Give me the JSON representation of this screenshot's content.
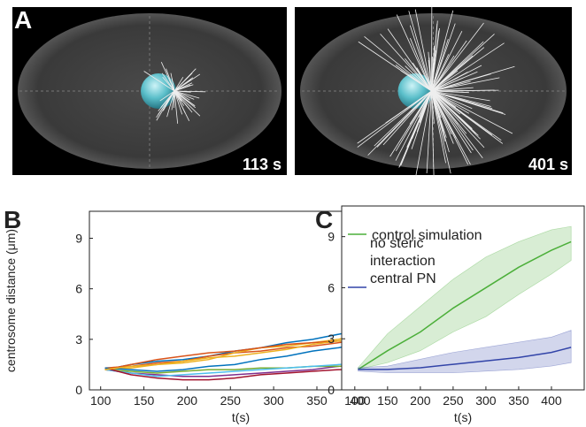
{
  "images": {
    "label": "A",
    "left_time": "113 s",
    "right_time": "401 s"
  },
  "chart_data": [
    {
      "type": "line",
      "panel_label": "B",
      "y_label": "centrosome distance (μm)",
      "x_label": "t(s)",
      "xlim": [
        87,
        437
      ],
      "ylim": [
        0,
        10.6
      ],
      "xticks": [
        100,
        150,
        200,
        250,
        300,
        350,
        400
      ],
      "yticks": [
        0,
        3,
        6,
        9
      ],
      "x": [
        105,
        135,
        165,
        195,
        225,
        255,
        285,
        315,
        345,
        375,
        405,
        435
      ],
      "series": [
        {
          "color": "#0072bd",
          "values": [
            1.2,
            1.5,
            1.7,
            1.8,
            2.0,
            2.3,
            2.5,
            2.8,
            3.0,
            3.3,
            3.6,
            3.9
          ]
        },
        {
          "color": "#d95319",
          "values": [
            1.3,
            1.4,
            1.6,
            1.7,
            2.0,
            2.2,
            2.3,
            2.5,
            2.6,
            2.8,
            3.0,
            3.1
          ]
        },
        {
          "color": "#edb120",
          "values": [
            1.2,
            1.3,
            1.5,
            1.6,
            1.8,
            2.2,
            2.5,
            2.6,
            2.8,
            3.0,
            3.4,
            3.8
          ]
        },
        {
          "color": "#7e2f8e",
          "values": [
            1.2,
            1.0,
            0.9,
            0.8,
            0.8,
            0.9,
            1.0,
            1.1,
            1.2,
            1.4,
            1.5,
            1.6
          ]
        },
        {
          "color": "#77ac30",
          "values": [
            1.2,
            1.1,
            1.0,
            1.1,
            1.2,
            1.2,
            1.3,
            1.3,
            1.4,
            1.4,
            1.5,
            1.5
          ]
        },
        {
          "color": "#4dbeee",
          "values": [
            1.2,
            1.0,
            0.8,
            0.9,
            1.0,
            1.1,
            1.2,
            1.3,
            1.4,
            1.5,
            1.6,
            1.7
          ]
        },
        {
          "color": "#a2142f",
          "values": [
            1.3,
            0.9,
            0.7,
            0.6,
            0.6,
            0.7,
            0.9,
            1.0,
            1.1,
            1.2,
            1.2,
            1.3
          ]
        },
        {
          "color": "#0072bd",
          "values": [
            1.3,
            1.2,
            1.1,
            1.2,
            1.4,
            1.5,
            1.8,
            2.0,
            2.3,
            2.5,
            2.8,
            3.0
          ]
        },
        {
          "color": "#d95319",
          "values": [
            1.2,
            1.5,
            1.8,
            2.0,
            2.2,
            2.3,
            2.5,
            2.7,
            2.8,
            2.9,
            3.1,
            3.2
          ]
        },
        {
          "color": "#edb120",
          "values": [
            1.2,
            1.4,
            1.5,
            1.7,
            1.9,
            2.0,
            2.2,
            2.4,
            2.7,
            2.9,
            3.1,
            3.3
          ]
        }
      ]
    },
    {
      "type": "band",
      "panel_label": "C",
      "x_label": "t(s)",
      "xlim": [
        80,
        450
      ],
      "ylim": [
        0,
        10.8
      ],
      "xticks": [
        100,
        150,
        200,
        250,
        300,
        350,
        400
      ],
      "yticks": [
        0,
        3,
        6,
        9
      ],
      "x": [
        105,
        150,
        200,
        250,
        300,
        350,
        400,
        430
      ],
      "series": [
        {
          "name": "control simulation",
          "color": "#4caf3a",
          "values": [
            1.2,
            2.3,
            3.4,
            4.8,
            6.0,
            7.2,
            8.2,
            8.7
          ],
          "upper": [
            1.3,
            3.3,
            4.9,
            6.5,
            7.8,
            8.7,
            9.4,
            9.6
          ],
          "lower": [
            1.2,
            1.6,
            2.3,
            3.4,
            4.3,
            5.6,
            6.8,
            7.6
          ]
        },
        {
          "name": "no steric interaction central PN",
          "color": "#3244a8",
          "values": [
            1.2,
            1.2,
            1.3,
            1.5,
            1.7,
            1.9,
            2.2,
            2.5
          ],
          "upper": [
            1.3,
            1.4,
            1.8,
            2.2,
            2.5,
            2.8,
            3.1,
            3.5
          ],
          "lower": [
            1.1,
            1.0,
            1.0,
            1.0,
            1.1,
            1.2,
            1.4,
            1.6
          ]
        }
      ]
    }
  ]
}
